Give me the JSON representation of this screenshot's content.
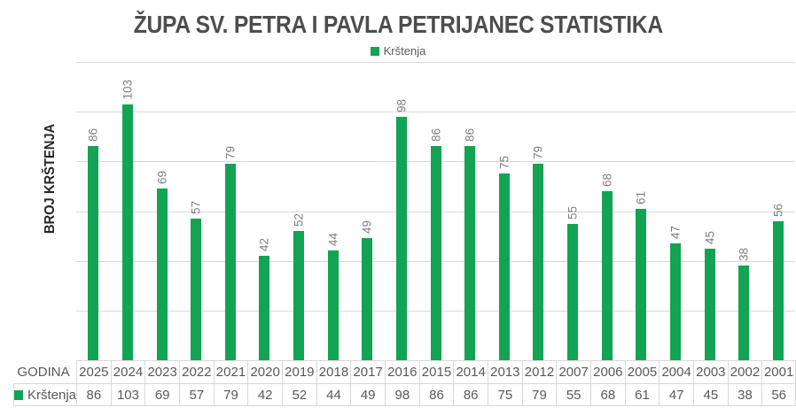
{
  "title": "ŽUPA SV. PETRA I PAVLA PETRIJANEC STATISTIKA",
  "legend": {
    "label": "Krštenja"
  },
  "y_axis_title": "BROJ KRŠTENJA",
  "x_axis_title": "GODINA",
  "colors": {
    "bar_green": "#12a452",
    "gridline": "#d9d9d9",
    "data_label_gray": "#7f7f7f",
    "title_gray": "#4d4d4d",
    "table_text_gray": "#595959"
  },
  "chart_data": {
    "type": "bar",
    "title": "ŽUPA SV. PETRA I PAVLA PETRIJANEC STATISTIKA",
    "xlabel": "GODINA",
    "ylabel": "BROJ KRŠTENJA",
    "categories": [
      "2025",
      "2024",
      "2023",
      "2022",
      "2021",
      "2020",
      "2019",
      "2018",
      "2017",
      "2016",
      "2015",
      "2014",
      "2013",
      "2012",
      "2007",
      "2006",
      "2005",
      "2004",
      "2003",
      "2002",
      "2001"
    ],
    "series": [
      {
        "name": "Krštenja",
        "values": [
          86,
          103,
          69,
          57,
          79,
          42,
          52,
          44,
          49,
          98,
          86,
          86,
          75,
          79,
          55,
          68,
          61,
          47,
          45,
          38,
          56
        ]
      }
    ],
    "ylim": [
      0,
      120
    ],
    "gridline_interval": 20,
    "y_tick_labels_visible": false,
    "grid": true,
    "legend_position": "top",
    "data_labels": "rotated-vertical-above-bars",
    "data_table_below_chart": true
  }
}
